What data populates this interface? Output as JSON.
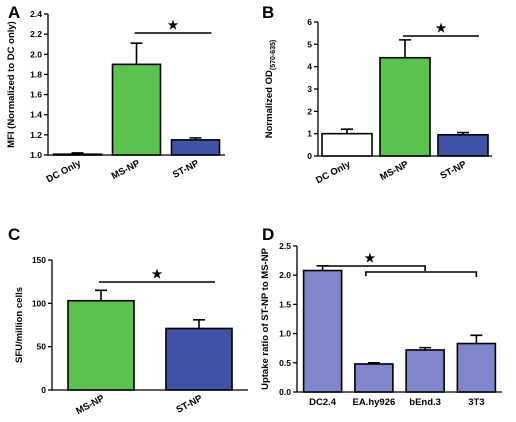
{
  "colors": {
    "white": "#ffffff",
    "green": "#5cc24e",
    "blue": "#3e52a6",
    "lavender": "#8086cc"
  },
  "chart_data": [
    {
      "panel": "A",
      "type": "bar",
      "categories": [
        "DC Only",
        "MS-NP",
        "ST-NP"
      ],
      "values": [
        1.0,
        1.9,
        1.15
      ],
      "errors": [
        0.02,
        0.21,
        0.02
      ],
      "colors": [
        "#ffffff",
        "#5cc24e",
        "#3e52a6"
      ],
      "ylabel": "MFI (Normalized to DC only)",
      "ylim": [
        1.0,
        2.4
      ],
      "yticks": [
        "1.0",
        "1.2",
        "1.4",
        "1.6",
        "1.8",
        "2.0",
        "2.2",
        "2.4"
      ],
      "significance": {
        "from": "MS-NP",
        "to": "ST-NP",
        "symbol": "★"
      }
    },
    {
      "panel": "B",
      "type": "bar",
      "categories": [
        "DC Only",
        "MS-NP",
        "ST-NP"
      ],
      "values": [
        1.0,
        4.4,
        0.95
      ],
      "errors": [
        0.2,
        0.8,
        0.1
      ],
      "colors": [
        "#ffffff",
        "#5cc24e",
        "#3e52a6"
      ],
      "ylabel": "Normalized OD",
      "ylabel_sub": "(570-635)",
      "ylim": [
        0,
        6
      ],
      "yticks": [
        "0",
        "1",
        "2",
        "3",
        "4",
        "5",
        "6"
      ],
      "significance": {
        "from": "MS-NP",
        "to": "ST-NP",
        "symbol": "★"
      }
    },
    {
      "panel": "C",
      "type": "bar",
      "categories": [
        "MS-NP",
        "ST-NP"
      ],
      "values": [
        103,
        71
      ],
      "errors": [
        12,
        10
      ],
      "colors": [
        "#5cc24e",
        "#3e52a6"
      ],
      "ylabel": "SFU/million cells",
      "ylim": [
        0,
        150
      ],
      "yticks": [
        "0",
        "50",
        "100",
        "150"
      ],
      "significance": {
        "from": "MS-NP",
        "to": "ST-NP",
        "symbol": "★"
      }
    },
    {
      "panel": "D",
      "type": "bar",
      "categories": [
        "DC2.4",
        "EA.hy926",
        "bEnd.3",
        "3T3"
      ],
      "values": [
        2.08,
        0.48,
        0.72,
        0.83
      ],
      "errors": [
        0.08,
        0.02,
        0.04,
        0.14
      ],
      "colors": [
        "#8086cc",
        "#8086cc",
        "#8086cc",
        "#8086cc"
      ],
      "ylabel": "Uptake ratio of ST-NP to MS-NP",
      "ylim": [
        0,
        2.5
      ],
      "yticks": [
        "0.0",
        "0.5",
        "1.0",
        "1.5",
        "2.0",
        "2.5"
      ],
      "significance": {
        "from": "DC2.4",
        "to": [
          "EA.hy926",
          "bEnd.3",
          "3T3"
        ],
        "symbol": "★"
      }
    }
  ]
}
